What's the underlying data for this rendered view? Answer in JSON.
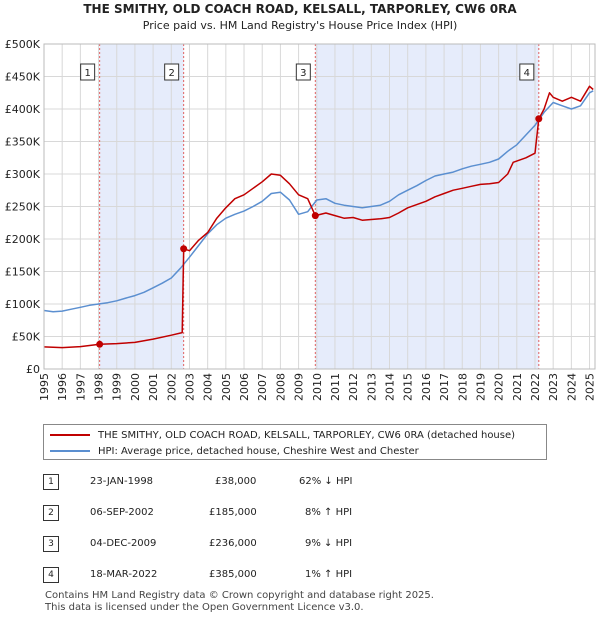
{
  "title": "THE SMITHY, OLD COACH ROAD, KELSALL, TARPORLEY, CW6 0RA",
  "subtitle": "Price paid vs. HM Land Registry's House Price Index (HPI)",
  "colors": {
    "property": "#c00000",
    "hpi": "#5b8fd0",
    "shade": "#e6ecfb",
    "vline": "#e06060"
  },
  "chart_data": {
    "type": "line",
    "title": "THE SMITHY, OLD COACH ROAD, KELSALL, TARPORLEY, CW6 0RA",
    "xlim": [
      1995,
      2025.3
    ],
    "ylim": [
      0,
      500000
    ],
    "yticks": [
      {
        "value": 0,
        "label": "£0"
      },
      {
        "value": 50000,
        "label": "£50K"
      },
      {
        "value": 100000,
        "label": "£100K"
      },
      {
        "value": 150000,
        "label": "£150K"
      },
      {
        "value": 200000,
        "label": "£200K"
      },
      {
        "value": 250000,
        "label": "£250K"
      },
      {
        "value": 300000,
        "label": "£300K"
      },
      {
        "value": 350000,
        "label": "£350K"
      },
      {
        "value": 400000,
        "label": "£400K"
      },
      {
        "value": 450000,
        "label": "£450K"
      },
      {
        "value": 500000,
        "label": "£500K"
      }
    ],
    "xticks": [
      "1995",
      "1996",
      "1997",
      "1998",
      "1999",
      "2000",
      "2001",
      "2002",
      "2003",
      "2004",
      "2005",
      "2006",
      "2007",
      "2008",
      "2009",
      "2010",
      "2011",
      "2012",
      "2013",
      "2014",
      "2015",
      "2016",
      "2017",
      "2018",
      "2019",
      "2020",
      "2021",
      "2022",
      "2023",
      "2024",
      "2025"
    ],
    "shaded_periods": [
      [
        1998.06,
        2002.68
      ],
      [
        2009.92,
        2022.21
      ]
    ],
    "series": [
      {
        "name": "THE SMITHY, OLD COACH ROAD, KELSALL, TARPORLEY, CW6 0RA (detached house)",
        "color": "#c00000",
        "points": [
          [
            1995.0,
            34000
          ],
          [
            1996.0,
            33000
          ],
          [
            1997.0,
            34500
          ],
          [
            1998.06,
            38000
          ],
          [
            1999.0,
            39000
          ],
          [
            2000.0,
            41000
          ],
          [
            2001.0,
            46000
          ],
          [
            2002.0,
            52000
          ],
          [
            2002.6,
            56000
          ],
          [
            2002.68,
            185000
          ],
          [
            2003.0,
            182000
          ],
          [
            2003.5,
            198000
          ],
          [
            2004.0,
            210000
          ],
          [
            2004.5,
            232000
          ],
          [
            2005.0,
            248000
          ],
          [
            2005.5,
            262000
          ],
          [
            2006.0,
            268000
          ],
          [
            2006.5,
            278000
          ],
          [
            2007.0,
            288000
          ],
          [
            2007.5,
            300000
          ],
          [
            2008.0,
            298000
          ],
          [
            2008.5,
            285000
          ],
          [
            2009.0,
            268000
          ],
          [
            2009.5,
            262000
          ],
          [
            2009.92,
            236000
          ],
          [
            2010.5,
            240000
          ],
          [
            2011.0,
            236000
          ],
          [
            2011.5,
            232000
          ],
          [
            2012.0,
            233000
          ],
          [
            2012.5,
            229000
          ],
          [
            2013.0,
            230000
          ],
          [
            2013.5,
            231000
          ],
          [
            2014.0,
            233000
          ],
          [
            2014.5,
            240000
          ],
          [
            2015.0,
            248000
          ],
          [
            2015.5,
            253000
          ],
          [
            2016.0,
            258000
          ],
          [
            2016.5,
            265000
          ],
          [
            2017.0,
            270000
          ],
          [
            2017.5,
            275000
          ],
          [
            2018.0,
            278000
          ],
          [
            2018.5,
            281000
          ],
          [
            2019.0,
            284000
          ],
          [
            2019.5,
            285000
          ],
          [
            2020.0,
            287000
          ],
          [
            2020.5,
            300000
          ],
          [
            2020.8,
            318000
          ],
          [
            2021.5,
            325000
          ],
          [
            2022.0,
            332000
          ],
          [
            2022.21,
            385000
          ],
          [
            2022.5,
            400000
          ],
          [
            2022.8,
            425000
          ],
          [
            2023.0,
            418000
          ],
          [
            2023.5,
            412000
          ],
          [
            2024.0,
            418000
          ],
          [
            2024.5,
            412000
          ],
          [
            2025.0,
            435000
          ],
          [
            2025.2,
            430000
          ]
        ]
      },
      {
        "name": "HPI: Average price, detached house, Cheshire West and Chester",
        "color": "#5b8fd0",
        "points": [
          [
            1995.0,
            90000
          ],
          [
            1995.5,
            88000
          ],
          [
            1996.0,
            89000
          ],
          [
            1996.5,
            92000
          ],
          [
            1997.0,
            95000
          ],
          [
            1997.5,
            98000
          ],
          [
            1998.0,
            100000
          ],
          [
            1998.5,
            102000
          ],
          [
            1999.0,
            105000
          ],
          [
            1999.5,
            109000
          ],
          [
            2000.0,
            113000
          ],
          [
            2000.5,
            118000
          ],
          [
            2001.0,
            125000
          ],
          [
            2001.5,
            132000
          ],
          [
            2002.0,
            140000
          ],
          [
            2002.5,
            155000
          ],
          [
            2003.0,
            172000
          ],
          [
            2003.5,
            190000
          ],
          [
            2004.0,
            208000
          ],
          [
            2004.5,
            222000
          ],
          [
            2005.0,
            232000
          ],
          [
            2005.5,
            238000
          ],
          [
            2006.0,
            243000
          ],
          [
            2006.5,
            250000
          ],
          [
            2007.0,
            258000
          ],
          [
            2007.5,
            270000
          ],
          [
            2008.0,
            272000
          ],
          [
            2008.5,
            260000
          ],
          [
            2009.0,
            238000
          ],
          [
            2009.5,
            242000
          ],
          [
            2010.0,
            260000
          ],
          [
            2010.5,
            262000
          ],
          [
            2011.0,
            255000
          ],
          [
            2011.5,
            252000
          ],
          [
            2012.0,
            250000
          ],
          [
            2012.5,
            248000
          ],
          [
            2013.0,
            250000
          ],
          [
            2013.5,
            252000
          ],
          [
            2014.0,
            258000
          ],
          [
            2014.5,
            268000
          ],
          [
            2015.0,
            275000
          ],
          [
            2015.5,
            282000
          ],
          [
            2016.0,
            290000
          ],
          [
            2016.5,
            297000
          ],
          [
            2017.0,
            300000
          ],
          [
            2017.5,
            303000
          ],
          [
            2018.0,
            308000
          ],
          [
            2018.5,
            312000
          ],
          [
            2019.0,
            315000
          ],
          [
            2019.5,
            318000
          ],
          [
            2020.0,
            323000
          ],
          [
            2020.5,
            335000
          ],
          [
            2021.0,
            345000
          ],
          [
            2021.5,
            360000
          ],
          [
            2022.0,
            375000
          ],
          [
            2022.5,
            395000
          ],
          [
            2023.0,
            410000
          ],
          [
            2023.5,
            405000
          ],
          [
            2024.0,
            400000
          ],
          [
            2024.5,
            405000
          ],
          [
            2025.0,
            425000
          ],
          [
            2025.2,
            428000
          ]
        ]
      }
    ],
    "sales": [
      {
        "id": "1",
        "x": 1998.06,
        "price": 38000
      },
      {
        "id": "2",
        "x": 2002.68,
        "price": 185000
      },
      {
        "id": "3",
        "x": 2009.92,
        "price": 236000
      },
      {
        "id": "4",
        "x": 2022.21,
        "price": 385000
      }
    ]
  },
  "legend": {
    "property_label": "THE SMITHY, OLD COACH ROAD, KELSALL, TARPORLEY, CW6 0RA (detached house)",
    "hpi_label": "HPI: Average price, detached house, Cheshire West and Chester"
  },
  "transactions": [
    {
      "num": "1",
      "date": "23-JAN-1998",
      "price": "£38,000",
      "hpi": "62% ↓ HPI"
    },
    {
      "num": "2",
      "date": "06-SEP-2002",
      "price": "£185,000",
      "hpi": "8% ↑ HPI"
    },
    {
      "num": "3",
      "date": "04-DEC-2009",
      "price": "£236,000",
      "hpi": "9% ↓ HPI"
    },
    {
      "num": "4",
      "date": "18-MAR-2022",
      "price": "£385,000",
      "hpi": "1% ↑ HPI"
    }
  ],
  "footer": {
    "line1": "Contains HM Land Registry data © Crown copyright and database right 2025.",
    "line2": "This data is licensed under the Open Government Licence v3.0."
  }
}
